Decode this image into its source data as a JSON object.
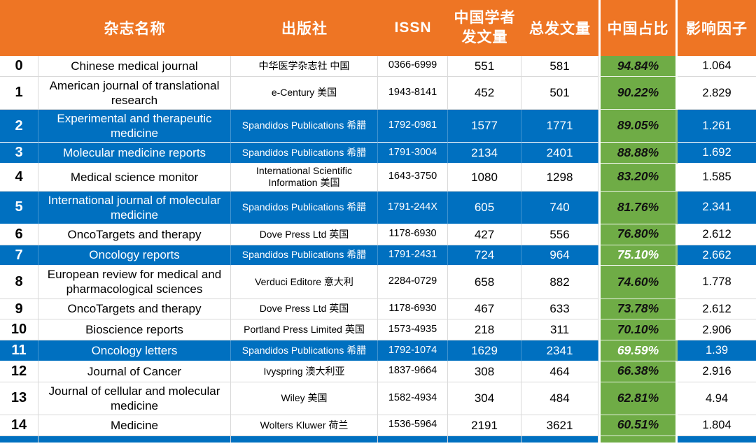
{
  "colors": {
    "header-bg": "#EE7524",
    "header-text": "#FFFFFF",
    "highlight-row-bg": "#0070C0",
    "highlight-row-text": "#FFFFFF",
    "percent-col-bg": "#6FAC46",
    "percent-text-dark": "#111111",
    "percent-text-light": "#FFFFFF",
    "row-text": "#000000",
    "grid-line": "#D9D9D9"
  },
  "chart_data": {
    "type": "table",
    "header": {
      "index": "",
      "journal": "杂志名称",
      "publisher": "出版社",
      "issn": "ISSN",
      "cn_count_line1": "中国学者",
      "cn_count_line2": "发文量",
      "total": "总发文量",
      "percent": "中国占比",
      "impact": "影响因子"
    },
    "rows": [
      {
        "index": "0",
        "journal": "Chinese medical journal",
        "publisher": "中华医学杂志社 中国",
        "issn": "0366-6999",
        "cn_count": "551",
        "total": "581",
        "percent": "94.84%",
        "impact": "1.064",
        "highlight": false,
        "percent_light": false
      },
      {
        "index": "1",
        "journal": "American journal of translational research",
        "publisher": "e-Century 美国",
        "issn": "1943-8141",
        "cn_count": "452",
        "total": "501",
        "percent": "90.22%",
        "impact": "2.829",
        "highlight": false,
        "percent_light": false
      },
      {
        "index": "2",
        "journal": "Experimental and therapeutic medicine",
        "publisher": "Spandidos Publications 希腊",
        "issn": "1792-0981",
        "cn_count": "1577",
        "total": "1771",
        "percent": "89.05%",
        "impact": "1.261",
        "highlight": true,
        "percent_light": false
      },
      {
        "index": "3",
        "journal": "Molecular medicine reports",
        "publisher": "Spandidos Publications 希腊",
        "issn": "1791-3004",
        "cn_count": "2134",
        "total": "2401",
        "percent": "88.88%",
        "impact": "1.692",
        "highlight": true,
        "percent_light": false
      },
      {
        "index": "4",
        "journal": "Medical science monitor",
        "publisher": "International Scientific Information 美国",
        "issn": "1643-3750",
        "cn_count": "1080",
        "total": "1298",
        "percent": "83.20%",
        "impact": "1.585",
        "highlight": false,
        "percent_light": false
      },
      {
        "index": "5",
        "journal": "International journal of molecular medicine",
        "publisher": "Spandidos Publications 希腊",
        "issn": "1791-244X",
        "cn_count": "605",
        "total": "740",
        "percent": "81.76%",
        "impact": "2.341",
        "highlight": true,
        "percent_light": false
      },
      {
        "index": "6",
        "journal": "OncoTargets and therapy",
        "publisher": "Dove Press Ltd 英国",
        "issn": "1178-6930",
        "cn_count": "427",
        "total": "556",
        "percent": "76.80%",
        "impact": "2.612",
        "highlight": false,
        "percent_light": false
      },
      {
        "index": "7",
        "journal": "Oncology reports",
        "publisher": "Spandidos Publications 希腊",
        "issn": "1791-2431",
        "cn_count": "724",
        "total": "964",
        "percent": "75.10%",
        "impact": "2.662",
        "highlight": true,
        "percent_light": true
      },
      {
        "index": "8",
        "journal": "European review for medical and pharmacological sciences",
        "publisher": "Verduci Editore 意大利",
        "issn": "2284-0729",
        "cn_count": "658",
        "total": "882",
        "percent": "74.60%",
        "impact": "1.778",
        "highlight": false,
        "percent_light": false
      },
      {
        "index": "9",
        "journal": "OncoTargets and therapy",
        "publisher": "Dove Press Ltd 英国",
        "issn": "1178-6930",
        "cn_count": "467",
        "total": "633",
        "percent": "73.78%",
        "impact": "2.612",
        "highlight": false,
        "percent_light": false
      },
      {
        "index": "10",
        "journal": "Bioscience reports",
        "publisher": "Portland Press Limited 英国",
        "issn": "1573-4935",
        "cn_count": "218",
        "total": "311",
        "percent": "70.10%",
        "impact": "2.906",
        "highlight": false,
        "percent_light": false
      },
      {
        "index": "11",
        "journal": "Oncology letters",
        "publisher": "Spandidos Publications 希腊",
        "issn": "1792-1074",
        "cn_count": "1629",
        "total": "2341",
        "percent": "69.59%",
        "impact": "1.39",
        "highlight": true,
        "percent_light": true
      },
      {
        "index": "12",
        "journal": "Journal of Cancer",
        "publisher": "Ivyspring 澳大利亚",
        "issn": "1837-9664",
        "cn_count": "308",
        "total": "464",
        "percent": "66.38%",
        "impact": "2.916",
        "highlight": false,
        "percent_light": false
      },
      {
        "index": "13",
        "journal": "Journal of cellular and molecular medicine",
        "publisher": "Wiley 美国",
        "issn": "1582-4934",
        "cn_count": "304",
        "total": "484",
        "percent": "62.81%",
        "impact": "4.94",
        "highlight": false,
        "percent_light": false
      },
      {
        "index": "14",
        "journal": "Medicine",
        "publisher": "Wolters Kluwer 荷兰",
        "issn": "1536-5964",
        "cn_count": "2191",
        "total": "3621",
        "percent": "60.51%",
        "impact": "1.804",
        "highlight": false,
        "percent_light": false
      }
    ]
  }
}
